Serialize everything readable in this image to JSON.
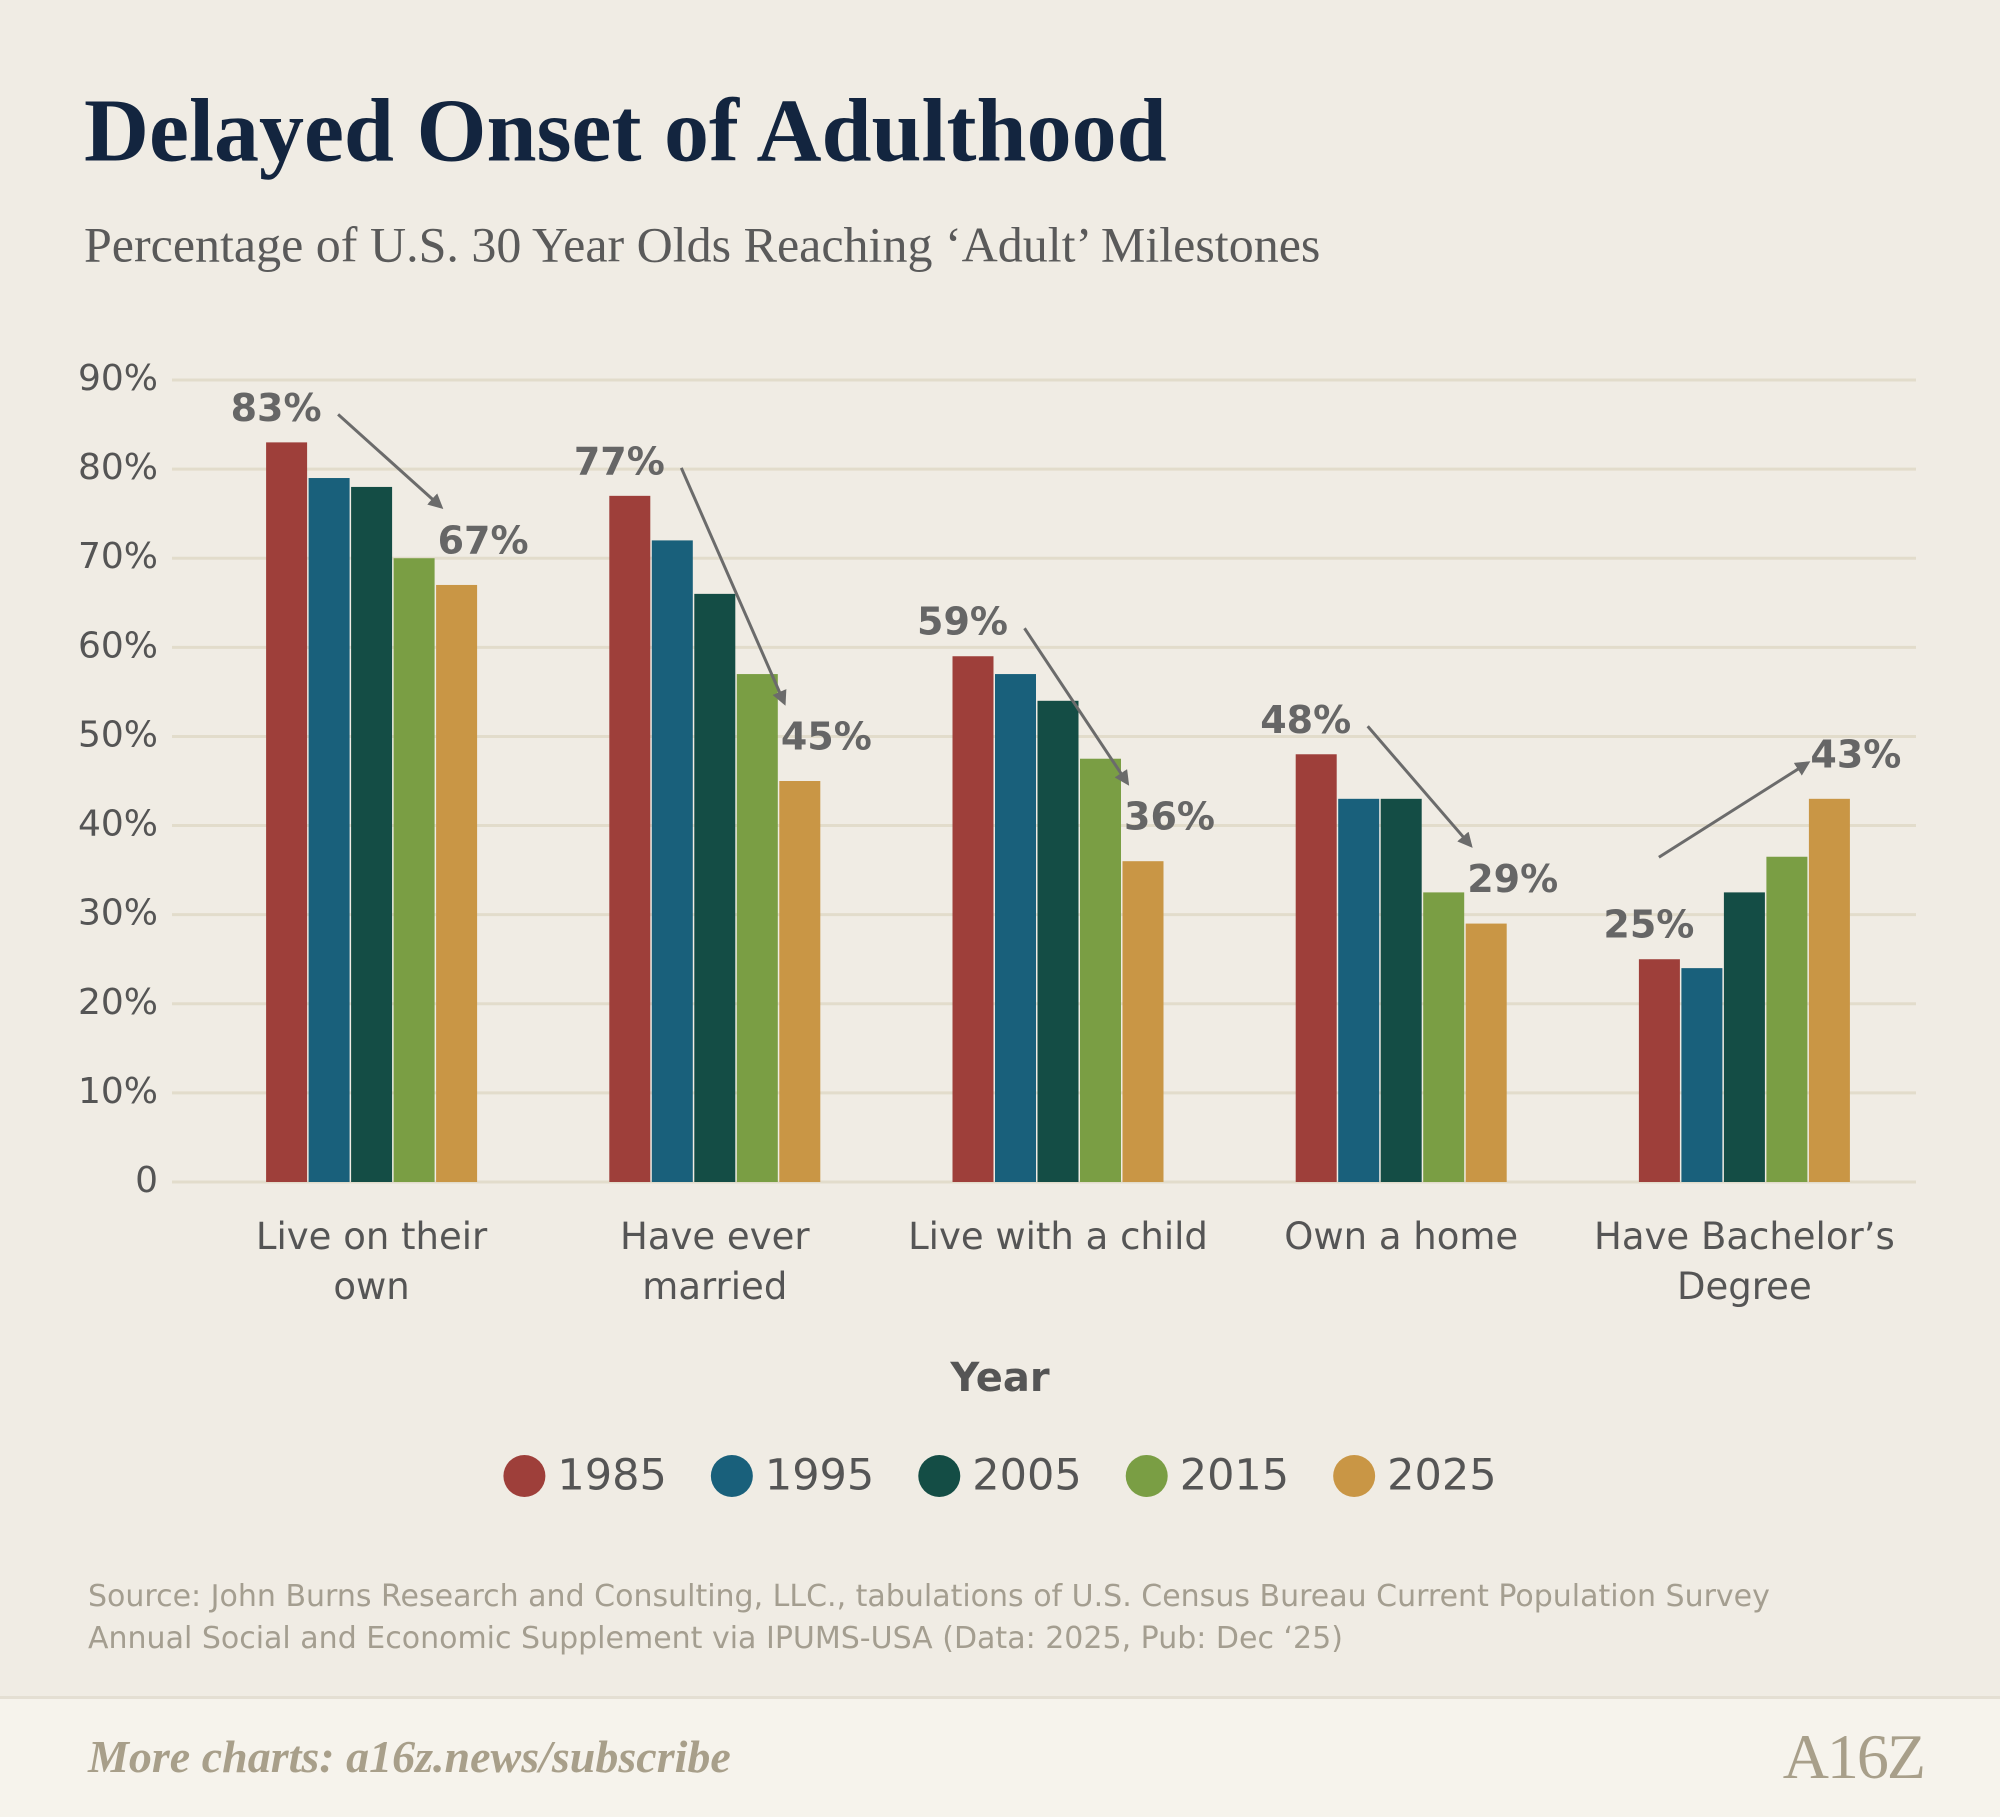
{
  "chart_data": {
    "type": "bar",
    "title": "Delayed Onset of Adulthood",
    "subtitle": "Percentage of U.S. 30 Year Olds Reaching ‘Adult’ Milestones",
    "categories": [
      "Live on their\nown",
      "Have ever\nmarried",
      "Live with a child",
      "Own a home",
      "Have Bachelor’s\nDegree"
    ],
    "legend_title": "Year",
    "series": [
      {
        "name": "1985",
        "color": "#9e3f3a",
        "values": [
          83,
          77,
          59,
          48,
          25
        ],
        "value_labels": [
          "83%",
          "77%",
          "59%",
          "48%",
          "25%"
        ]
      },
      {
        "name": "1995",
        "color": "#19607b",
        "values": [
          79,
          72,
          57,
          43,
          24
        ]
      },
      {
        "name": "2005",
        "color": "#144d45",
        "values": [
          78,
          66,
          54,
          43,
          32.5
        ]
      },
      {
        "name": "2015",
        "color": "#7a9e44",
        "values": [
          70,
          57,
          47.5,
          32.5,
          36.5
        ]
      },
      {
        "name": "2025",
        "color": "#c99645",
        "values": [
          67,
          45,
          36,
          29,
          43
        ],
        "value_labels": [
          "67%",
          "45%",
          "36%",
          "29%",
          "43%"
        ]
      }
    ],
    "ylim": [
      0,
      90
    ],
    "yticks": [
      0,
      {
        "value": 10,
        "label": "10%"
      },
      {
        "value": 20,
        "label": "20%"
      },
      {
        "value": 30,
        "label": "30%"
      },
      {
        "value": 40,
        "label": "40%"
      },
      {
        "value": 50,
        "label": "50%"
      },
      {
        "value": 60,
        "label": "60%"
      },
      {
        "value": 70,
        "label": "70%"
      },
      {
        "value": 80,
        "label": "80%"
      },
      {
        "value": 90,
        "label": "90%"
      }
    ],
    "grid": true,
    "source": "Source: John Burns Research and Consulting, LLC., tabulations of U.S. Census Bureau Current Population Survey\nAnnual Social and Economic Supplement via IPUMS-USA (Data: 2025, Pub: Dec ‘25)",
    "footer": "More charts: a16z.news/subscribe",
    "logo": "A16Z"
  }
}
